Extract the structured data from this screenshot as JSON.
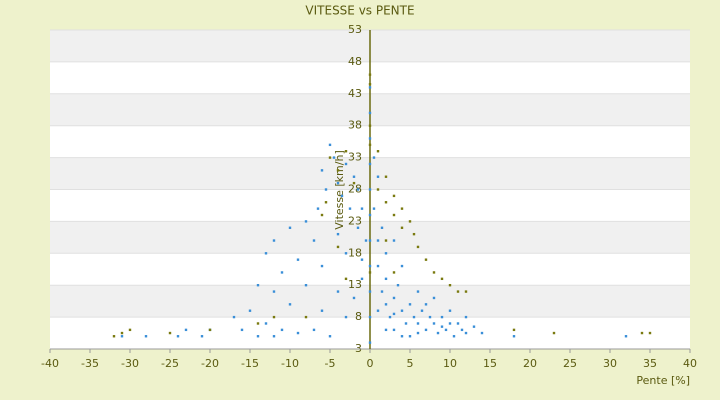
{
  "chart_data": {
    "type": "scatter",
    "title": "VITESSE vs PENTE",
    "x_label": "Pente [%]",
    "y_label": "Vitesse [km/h]",
    "xlim": [
      -40,
      40
    ],
    "xticks": [
      -40,
      -35,
      -30,
      -25,
      -20,
      -15,
      -10,
      -5,
      0,
      5,
      10,
      15,
      20,
      25,
      30,
      35,
      40
    ],
    "ylim": [
      3,
      53
    ],
    "yticks": [
      3,
      8,
      13,
      18,
      23,
      28,
      33,
      38,
      43,
      48,
      53
    ],
    "grid": true,
    "series": [
      {
        "color": "#3a8fd8",
        "x": [
          -5,
          -4.5,
          -6,
          -3,
          -4,
          -5.5,
          -2,
          -3.5,
          -6.5,
          -2.5,
          -8,
          -10,
          -7,
          -4,
          -1.5,
          -12,
          -13,
          -9,
          -11,
          -6,
          -3,
          -14,
          -12,
          -8,
          -10,
          -15,
          -17,
          -13,
          -11,
          -9,
          -7,
          -5,
          -12,
          -20,
          -23,
          -31,
          -24,
          -21,
          -3,
          -2,
          -1,
          -1,
          -0.5,
          -1,
          -1.5,
          -4,
          -6,
          0,
          0,
          0,
          0,
          0,
          0,
          0,
          0,
          0,
          0,
          0,
          0.5,
          1,
          1,
          1.5,
          2,
          2,
          2.5,
          3,
          3,
          3.5,
          4,
          4,
          4.5,
          5,
          5,
          5.5,
          6,
          6,
          6.5,
          7,
          7,
          7.5,
          8,
          8,
          8.5,
          9,
          9.5,
          10,
          10,
          10.5,
          11,
          11.5,
          12,
          12,
          13,
          14,
          2,
          1.5,
          3,
          4,
          1,
          2,
          18,
          32,
          3,
          6,
          9,
          -28,
          -14,
          -16,
          1,
          0.5
        ],
        "y": [
          35,
          33,
          31,
          32,
          29,
          28,
          30,
          27,
          25,
          25,
          23,
          22,
          20,
          21,
          22,
          20,
          18,
          17,
          15,
          16,
          18,
          13,
          12,
          13,
          10,
          9,
          8,
          7,
          6,
          5.5,
          6,
          5,
          5,
          6,
          6,
          5,
          5,
          5,
          8,
          11,
          14,
          17,
          20,
          25,
          28,
          12,
          9,
          4,
          8,
          12,
          16,
          20,
          24,
          28,
          32,
          36,
          40,
          44,
          25,
          20,
          16,
          12,
          10,
          14,
          8,
          11,
          6,
          13,
          9,
          16,
          7,
          10,
          5,
          8,
          12,
          7,
          9,
          6,
          10,
          8,
          7,
          11,
          5.5,
          8,
          6,
          7,
          9,
          5,
          7,
          6,
          8,
          5.5,
          6.5,
          5.5,
          18,
          22,
          20,
          5,
          9,
          6,
          5,
          5,
          8.5,
          5.5,
          6.5,
          5,
          5,
          6,
          30,
          33
        ]
      },
      {
        "color": "#7a7a10",
        "x": [
          0,
          1,
          2,
          3,
          4,
          5,
          5.5,
          6,
          7,
          8,
          9,
          10,
          11,
          12,
          1,
          2,
          3,
          4,
          -5,
          -4,
          -3,
          -5.5,
          -6,
          -2,
          -4,
          -3,
          -8,
          -14,
          -12,
          -30,
          -31,
          -32,
          -25,
          -20,
          18,
          23,
          34,
          35,
          2,
          0,
          0,
          0,
          0,
          3
        ],
        "y": [
          35,
          34,
          30,
          27,
          25,
          23,
          21,
          19,
          17,
          15,
          14,
          13,
          12,
          12,
          28,
          26,
          24,
          22,
          33,
          31,
          34,
          26,
          24,
          29,
          19,
          14,
          8,
          7,
          8,
          6,
          5.5,
          5,
          5.5,
          6,
          6,
          5.5,
          5.5,
          5.5,
          20,
          46,
          44.5,
          38,
          15,
          15
        ]
      }
    ]
  }
}
